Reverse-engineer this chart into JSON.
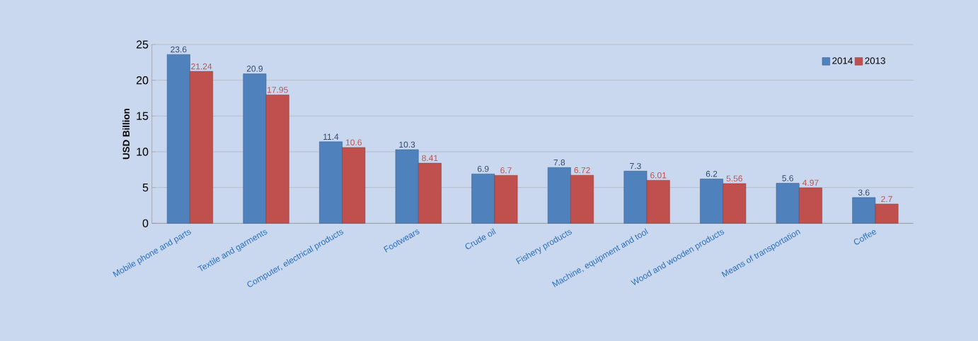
{
  "chart_data": {
    "type": "bar",
    "ylabel": "USD Billion",
    "categories": [
      "Mobile phone and parts",
      "Textile and garments",
      "Computer, electrical products",
      "Footwears",
      "Crude oil",
      "Fishery products",
      "Machine, equipment and tool",
      "Wood and wooden products",
      "Means of transportation",
      "Coffee"
    ],
    "series": [
      {
        "name": "2014",
        "color": "#4f81bd",
        "values": [
          23.6,
          20.9,
          11.4,
          10.3,
          6.9,
          7.8,
          7.3,
          6.2,
          5.6,
          3.6
        ]
      },
      {
        "name": "2013",
        "color": "#c0504d",
        "values": [
          21.24,
          17.95,
          10.6,
          8.41,
          6.7,
          6.72,
          6.01,
          5.56,
          4.97,
          2.7
        ]
      }
    ],
    "ylim": [
      0,
      25
    ],
    "yticks": [
      0,
      5,
      10,
      15,
      20,
      25
    ],
    "grid": "y",
    "legend": "top right",
    "data_labels": true
  }
}
